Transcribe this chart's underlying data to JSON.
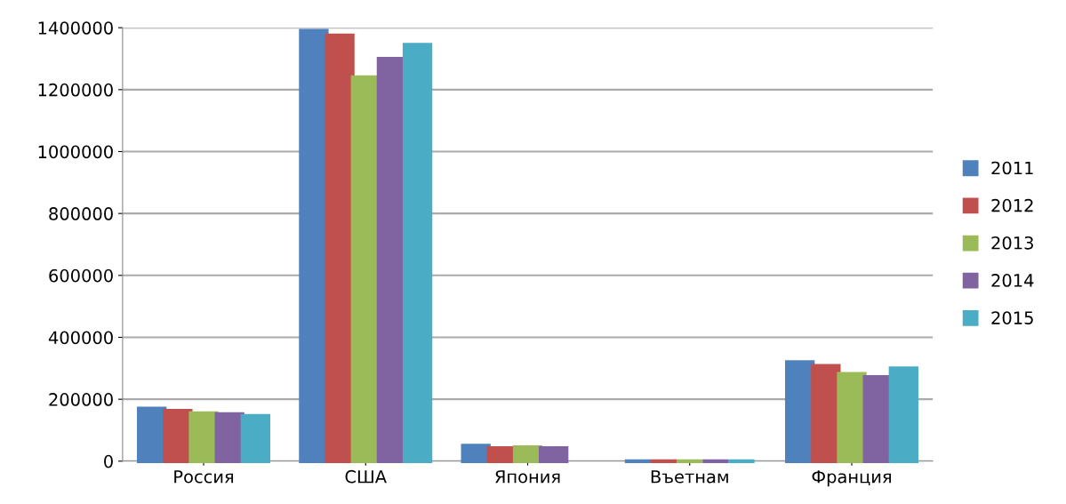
{
  "chart_data": {
    "type": "bar",
    "categories": [
      "Россия",
      "США",
      "Япония",
      "Въетнам",
      "Франция"
    ],
    "series": [
      {
        "name": "2011",
        "color": "#4f81bd",
        "values": [
          170000,
          1390000,
          50000,
          0,
          320000
        ]
      },
      {
        "name": "2012",
        "color": "#c0504d",
        "values": [
          163000,
          1375000,
          42000,
          0,
          308000
        ]
      },
      {
        "name": "2013",
        "color": "#9bbb59",
        "values": [
          155000,
          1240000,
          45000,
          0,
          282000
        ]
      },
      {
        "name": "2014",
        "color": "#8064a2",
        "values": [
          152000,
          1300000,
          42000,
          0,
          272000
        ]
      },
      {
        "name": "2015",
        "color": "#4bacc6",
        "values": [
          146000,
          1345000,
          null,
          0,
          300000
        ]
      }
    ],
    "ylim": [
      0,
      1400000
    ],
    "yticks": [
      0,
      200000,
      400000,
      600000,
      800000,
      1000000,
      1200000,
      1400000
    ],
    "grid": "y",
    "legend": "right"
  }
}
